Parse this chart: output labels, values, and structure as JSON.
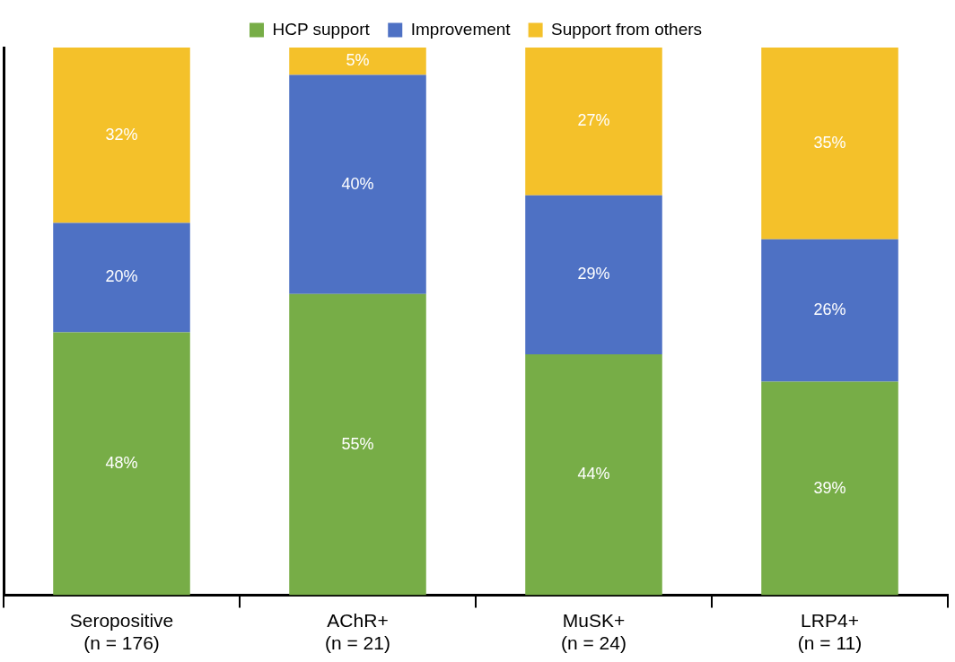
{
  "chart_data": {
    "type": "bar",
    "stacked": true,
    "categories": [
      "Seropositive\n(n = 176)",
      "AChR+\n(n = 21)",
      "MuSK+\n(n = 24)",
      "LRP4+\n(n = 11)"
    ],
    "series": [
      {
        "name": "HCP support",
        "color": "#77ad47",
        "values": [
          48,
          55,
          44,
          39
        ],
        "value_labels": [
          "48%",
          "55%",
          "44%",
          "39%"
        ]
      },
      {
        "name": "Improvement",
        "color": "#4e71c4",
        "values": [
          20,
          40,
          29,
          26
        ],
        "value_labels": [
          "20%",
          "40%",
          "29%",
          "26%"
        ]
      },
      {
        "name": "Support from others",
        "color": "#f4c12a",
        "values": [
          32,
          5,
          27,
          35
        ],
        "value_labels": [
          "32%",
          "5%",
          "27%",
          "35%"
        ]
      }
    ],
    "tick_labels": "x",
    "legend": "top",
    "grid": false
  }
}
